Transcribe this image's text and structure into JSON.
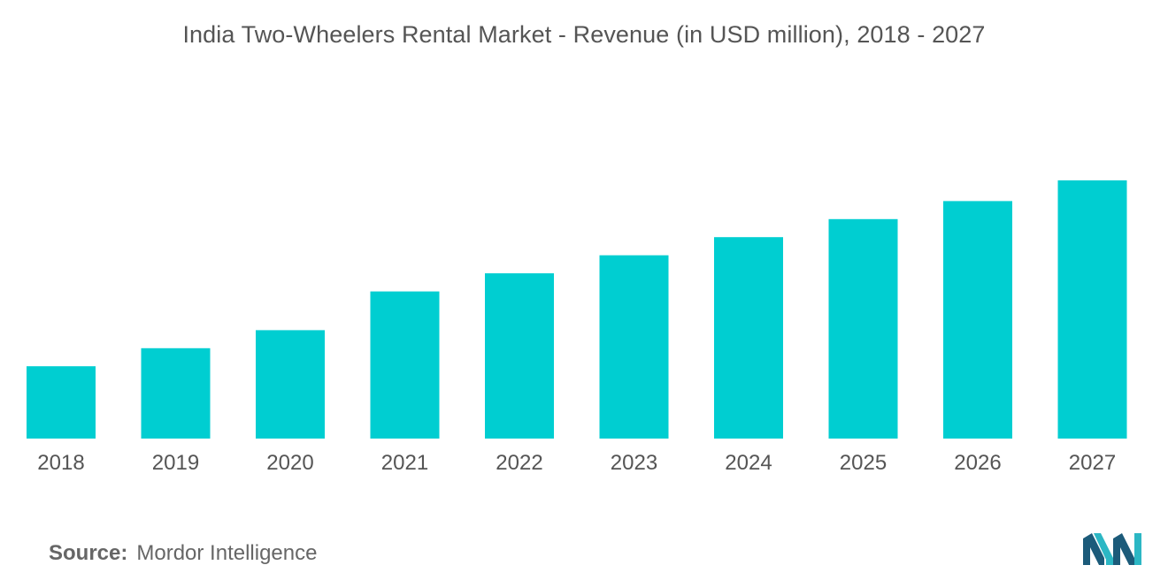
{
  "title": "India Two-Wheelers Rental Market - Revenue (in USD million), 2018 -  2027",
  "source": {
    "label": "Source:",
    "text": "Mordor Intelligence"
  },
  "logo": {
    "icon": "mordor-intelligence-logo",
    "colors": [
      "#1c5b7a",
      "#2cb7c4"
    ]
  },
  "colors": {
    "bar": "#00ced1",
    "text": "#555555"
  },
  "chart_data": {
    "type": "bar",
    "title": "India Two-Wheelers Rental Market - Revenue (in USD million), 2018 -  2027",
    "xlabel": "",
    "ylabel": "",
    "categories": [
      "2018",
      "2019",
      "2020",
      "2021",
      "2022",
      "2023",
      "2024",
      "2025",
      "2026",
      "2027"
    ],
    "values": [
      28,
      35,
      42,
      57,
      64,
      71,
      78,
      85,
      92,
      100
    ],
    "ylim": [
      0,
      100
    ],
    "value_note_hidden": true,
    "grid": false,
    "legend": "none"
  }
}
